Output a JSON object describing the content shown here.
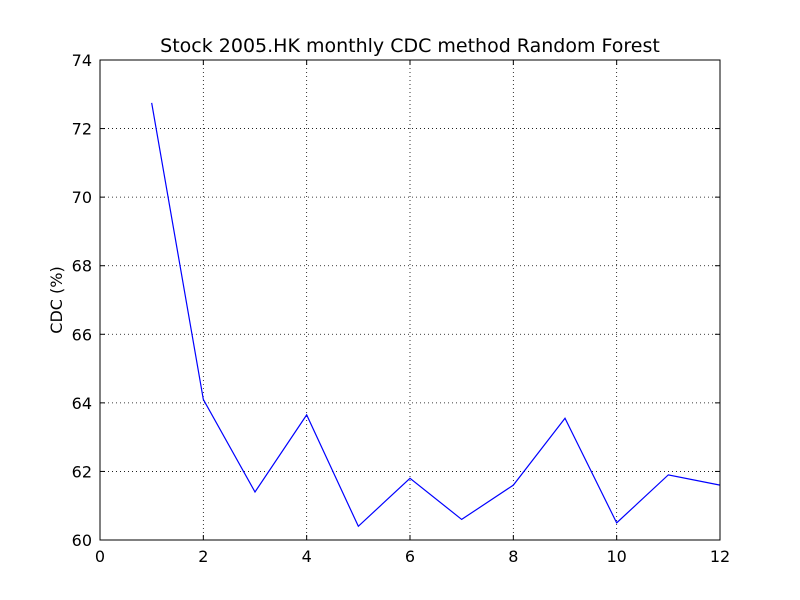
{
  "chart_data": {
    "type": "line",
    "title": "Stock 2005.HK monthly CDC method Random Forest",
    "xlabel": "",
    "ylabel": "CDC (%)",
    "xlim": [
      0,
      12
    ],
    "ylim": [
      60,
      74
    ],
    "x_ticks": [
      0,
      2,
      4,
      6,
      8,
      10,
      12
    ],
    "y_ticks": [
      60,
      62,
      64,
      66,
      68,
      70,
      72,
      74
    ],
    "grid": true,
    "legend": "none",
    "series": [
      {
        "color": "#0000ff",
        "x": [
          1,
          2,
          3,
          4,
          5,
          6,
          7,
          8,
          9,
          10,
          11,
          12
        ],
        "y": [
          72.75,
          64.1,
          61.4,
          63.65,
          60.4,
          61.8,
          60.6,
          61.6,
          63.55,
          60.5,
          61.9,
          61.6
        ]
      }
    ]
  }
}
